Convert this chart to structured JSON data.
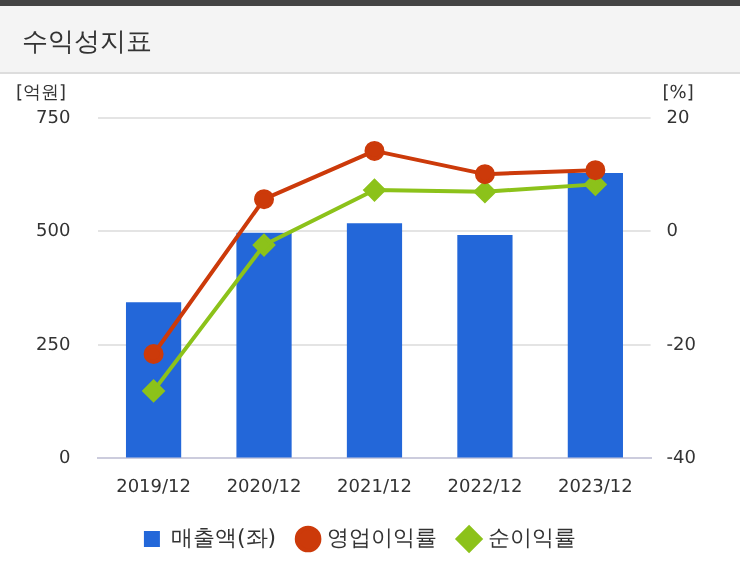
{
  "chart_data": {
    "type": "bar",
    "title": "수익성지표",
    "ylabel": "[억원]",
    "y2label": "[%]",
    "categories": [
      "2019/12",
      "2020/12",
      "2021/12",
      "2022/12",
      "2023/12"
    ],
    "series": [
      {
        "name": "매출액(좌)",
        "color": "#2367d9",
        "values": [
          344,
          497,
          518,
          492,
          629
        ]
      },
      {
        "name": "영업이익률",
        "type": "line",
        "axis": "y2",
        "color": "#cc3a0a",
        "marker": "circle",
        "values": [
          -21.6,
          5.7,
          14.2,
          10.1,
          10.8
        ]
      },
      {
        "name": "순이익률",
        "type": "line",
        "axis": "y2",
        "color": "#8cc21a",
        "marker": "diamond",
        "values": [
          -28.1,
          -2.4,
          7.3,
          7.0,
          8.3
        ]
      }
    ],
    "ylim": [
      0,
      750
    ],
    "yticks": [
      0,
      250,
      500,
      750
    ],
    "y2lim": [
      -40,
      20
    ],
    "y2ticks": [
      -40,
      -20,
      0,
      20
    ],
    "grid": "y",
    "legend": "bottom"
  }
}
